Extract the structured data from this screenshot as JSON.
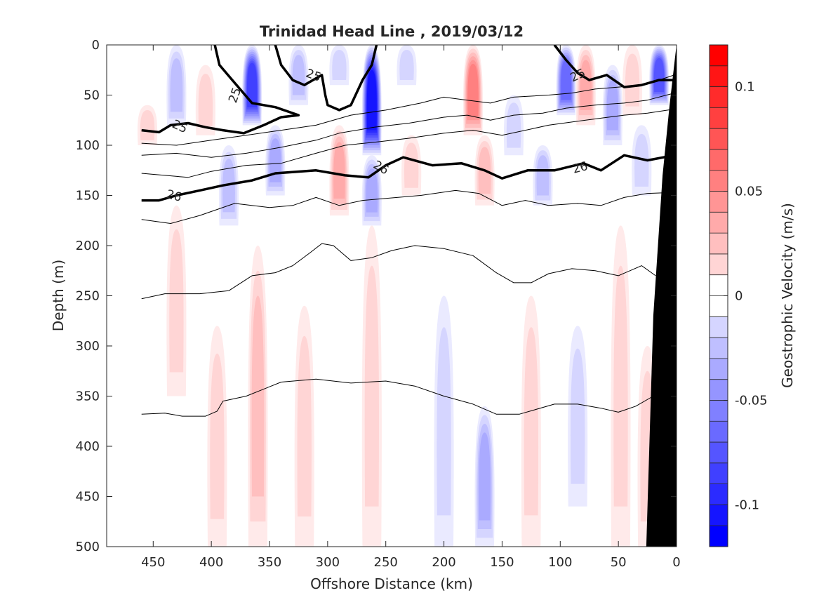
{
  "chart_data": {
    "type": "heatmap",
    "title": "Trinidad Head Line , 2019/03/12",
    "xlabel": "Offshore Distance (km)",
    "ylabel": "Depth (m)",
    "xlim": [
      490,
      0
    ],
    "ylim": [
      500,
      0
    ],
    "x_ticks": [
      "450",
      "400",
      "350",
      "300",
      "250",
      "200",
      "150",
      "100",
      "50",
      "0"
    ],
    "y_ticks": [
      "0",
      "50",
      "100",
      "150",
      "200",
      "250",
      "300",
      "350",
      "400",
      "450",
      "500"
    ],
    "colorbar": {
      "label": "Geostrophic Velocity (m/s)",
      "range": [
        -0.12,
        0.12
      ],
      "step": 0.01,
      "ticks": [
        "0.1",
        "0.05",
        "0",
        "-0.05",
        "-0.1"
      ],
      "positive_color": "#ff0000",
      "negative_color": "#0000ff",
      "zero_color": "#ffffff"
    },
    "velocity_bands": [
      {
        "x": 455,
        "top": 60,
        "bottom": 100,
        "v": 0.015
      },
      {
        "x": 430,
        "top": 0,
        "bottom": 80,
        "v": -0.025
      },
      {
        "x": 430,
        "top": 160,
        "bottom": 350,
        "v": 0.018
      },
      {
        "x": 405,
        "top": 20,
        "bottom": 90,
        "v": 0.02
      },
      {
        "x": 395,
        "top": 280,
        "bottom": 500,
        "v": 0.02
      },
      {
        "x": 385,
        "top": 100,
        "bottom": 180,
        "v": -0.03
      },
      {
        "x": 365,
        "top": 0,
        "bottom": 80,
        "v": -0.085
      },
      {
        "x": 360,
        "top": 200,
        "bottom": 500,
        "v": 0.025
      },
      {
        "x": 345,
        "top": 80,
        "bottom": 150,
        "v": -0.035
      },
      {
        "x": 325,
        "top": 0,
        "bottom": 60,
        "v": -0.03
      },
      {
        "x": 320,
        "top": 260,
        "bottom": 500,
        "v": 0.02
      },
      {
        "x": 290,
        "top": 80,
        "bottom": 170,
        "v": 0.035
      },
      {
        "x": 290,
        "top": 0,
        "bottom": 40,
        "v": -0.02
      },
      {
        "x": 262,
        "top": 0,
        "bottom": 110,
        "v": -0.105
      },
      {
        "x": 262,
        "top": 110,
        "bottom": 180,
        "v": -0.04
      },
      {
        "x": 262,
        "top": 180,
        "bottom": 500,
        "v": 0.02
      },
      {
        "x": 232,
        "top": 0,
        "bottom": 40,
        "v": -0.015
      },
      {
        "x": 228,
        "top": 90,
        "bottom": 150,
        "v": 0.015
      },
      {
        "x": 200,
        "top": 250,
        "bottom": 500,
        "v": -0.02
      },
      {
        "x": 175,
        "top": 0,
        "bottom": 90,
        "v": 0.06
      },
      {
        "x": 165,
        "top": 90,
        "bottom": 160,
        "v": 0.025
      },
      {
        "x": 165,
        "top": 360,
        "bottom": 500,
        "v": -0.035
      },
      {
        "x": 140,
        "top": 50,
        "bottom": 110,
        "v": -0.02
      },
      {
        "x": 125,
        "top": 250,
        "bottom": 500,
        "v": 0.018
      },
      {
        "x": 115,
        "top": 100,
        "bottom": 160,
        "v": -0.025
      },
      {
        "x": 95,
        "top": 0,
        "bottom": 70,
        "v": -0.07
      },
      {
        "x": 85,
        "top": 280,
        "bottom": 460,
        "v": -0.02
      },
      {
        "x": 78,
        "top": 0,
        "bottom": 80,
        "v": 0.04
      },
      {
        "x": 55,
        "top": 20,
        "bottom": 100,
        "v": -0.035
      },
      {
        "x": 48,
        "top": 180,
        "bottom": 500,
        "v": 0.02
      },
      {
        "x": 38,
        "top": 0,
        "bottom": 70,
        "v": 0.02
      },
      {
        "x": 30,
        "top": 80,
        "bottom": 150,
        "v": -0.02
      },
      {
        "x": 25,
        "top": 300,
        "bottom": 500,
        "v": 0.02
      },
      {
        "x": 15,
        "top": 0,
        "bottom": 60,
        "v": -0.075
      }
    ],
    "contour_lines": [
      {
        "level": "25",
        "bold": true,
        "points": [
          [
            460,
            85
          ],
          [
            445,
            87
          ],
          [
            435,
            80
          ],
          [
            420,
            78
          ],
          [
            405,
            82
          ],
          [
            390,
            85
          ],
          [
            372,
            88
          ],
          [
            355,
            80
          ],
          [
            340,
            72
          ],
          [
            325,
            70
          ],
          [
            345,
            62
          ],
          [
            365,
            58
          ],
          [
            382,
            35
          ],
          [
            393,
            20
          ],
          [
            397,
            0
          ]
        ]
      },
      {
        "level": "25",
        "bold": true,
        "points": [
          [
            345,
            0
          ],
          [
            340,
            20
          ],
          [
            330,
            35
          ],
          [
            320,
            40
          ],
          [
            305,
            30
          ],
          [
            302,
            50
          ],
          [
            300,
            60
          ],
          [
            290,
            65
          ],
          [
            280,
            60
          ],
          [
            270,
            35
          ],
          [
            262,
            20
          ],
          [
            258,
            0
          ]
        ]
      },
      {
        "level": "25",
        "bold": true,
        "points": [
          [
            105,
            0
          ],
          [
            95,
            15
          ],
          [
            85,
            28
          ],
          [
            75,
            35
          ],
          [
            60,
            30
          ],
          [
            45,
            42
          ],
          [
            30,
            40
          ],
          [
            15,
            35
          ],
          [
            2,
            35
          ]
        ]
      },
      {
        "level": "26",
        "bold": true,
        "points": [
          [
            460,
            155
          ],
          [
            445,
            155
          ],
          [
            430,
            150
          ],
          [
            410,
            145
          ],
          [
            390,
            140
          ],
          [
            365,
            135
          ],
          [
            345,
            128
          ],
          [
            310,
            125
          ],
          [
            285,
            130
          ],
          [
            265,
            132
          ],
          [
            250,
            120
          ],
          [
            235,
            112
          ],
          [
            210,
            120
          ],
          [
            185,
            118
          ],
          [
            165,
            125
          ],
          [
            150,
            133
          ],
          [
            128,
            125
          ],
          [
            105,
            125
          ],
          [
            80,
            118
          ],
          [
            65,
            125
          ],
          [
            45,
            110
          ],
          [
            25,
            115
          ],
          [
            2,
            110
          ]
        ]
      },
      {
        "level": "",
        "bold": false,
        "points": [
          [
            460,
            98
          ],
          [
            430,
            100
          ],
          [
            400,
            95
          ],
          [
            370,
            90
          ],
          [
            340,
            85
          ],
          [
            310,
            80
          ],
          [
            280,
            70
          ],
          [
            250,
            65
          ],
          [
            220,
            58
          ],
          [
            200,
            52
          ],
          [
            180,
            55
          ],
          [
            160,
            58
          ],
          [
            140,
            52
          ],
          [
            110,
            50
          ],
          [
            90,
            48
          ],
          [
            70,
            44
          ],
          [
            50,
            42
          ],
          [
            30,
            40
          ],
          [
            15,
            35
          ],
          [
            2,
            30
          ]
        ]
      },
      {
        "level": "",
        "bold": false,
        "points": [
          [
            460,
            110
          ],
          [
            430,
            108
          ],
          [
            400,
            112
          ],
          [
            370,
            108
          ],
          [
            340,
            102
          ],
          [
            310,
            95
          ],
          [
            290,
            88
          ],
          [
            260,
            82
          ],
          [
            230,
            78
          ],
          [
            200,
            72
          ],
          [
            180,
            70
          ],
          [
            160,
            75
          ],
          [
            140,
            70
          ],
          [
            115,
            68
          ],
          [
            95,
            63
          ],
          [
            70,
            60
          ],
          [
            45,
            58
          ],
          [
            25,
            55
          ],
          [
            2,
            48
          ]
        ]
      },
      {
        "level": "",
        "bold": false,
        "points": [
          [
            460,
            128
          ],
          [
            440,
            130
          ],
          [
            420,
            132
          ],
          [
            400,
            126
          ],
          [
            370,
            120
          ],
          [
            340,
            118
          ],
          [
            310,
            108
          ],
          [
            285,
            100
          ],
          [
            260,
            97
          ],
          [
            230,
            93
          ],
          [
            200,
            88
          ],
          [
            175,
            85
          ],
          [
            150,
            90
          ],
          [
            130,
            85
          ],
          [
            110,
            80
          ],
          [
            85,
            76
          ],
          [
            65,
            73
          ],
          [
            45,
            70
          ],
          [
            25,
            68
          ],
          [
            2,
            64
          ]
        ]
      },
      {
        "level": "",
        "bold": false,
        "points": [
          [
            460,
            174
          ],
          [
            435,
            178
          ],
          [
            410,
            170
          ],
          [
            380,
            158
          ],
          [
            350,
            162
          ],
          [
            330,
            160
          ],
          [
            310,
            152
          ],
          [
            290,
            160
          ],
          [
            270,
            155
          ],
          [
            250,
            153
          ],
          [
            220,
            150
          ],
          [
            190,
            145
          ],
          [
            170,
            148
          ],
          [
            150,
            160
          ],
          [
            130,
            155
          ],
          [
            110,
            160
          ],
          [
            85,
            158
          ],
          [
            65,
            160
          ],
          [
            45,
            152
          ],
          [
            25,
            148
          ],
          [
            2,
            147
          ]
        ]
      },
      {
        "level": "",
        "bold": false,
        "points": [
          [
            460,
            253
          ],
          [
            440,
            248
          ],
          [
            410,
            248
          ],
          [
            385,
            245
          ],
          [
            365,
            230
          ],
          [
            345,
            227
          ],
          [
            330,
            220
          ],
          [
            315,
            207
          ],
          [
            305,
            198
          ],
          [
            295,
            200
          ],
          [
            280,
            215
          ],
          [
            262,
            212
          ],
          [
            245,
            205
          ],
          [
            225,
            200
          ],
          [
            200,
            203
          ],
          [
            175,
            210
          ],
          [
            155,
            227
          ],
          [
            140,
            237
          ],
          [
            125,
            237
          ],
          [
            110,
            228
          ],
          [
            90,
            223
          ],
          [
            70,
            225
          ],
          [
            50,
            230
          ],
          [
            30,
            220
          ],
          [
            18,
            230
          ]
        ]
      },
      {
        "level": "",
        "bold": false,
        "points": [
          [
            460,
            368
          ],
          [
            440,
            367
          ],
          [
            425,
            370
          ],
          [
            405,
            370
          ],
          [
            395,
            365
          ],
          [
            390,
            355
          ],
          [
            370,
            350
          ],
          [
            340,
            336
          ],
          [
            310,
            333
          ],
          [
            280,
            337
          ],
          [
            250,
            335
          ],
          [
            225,
            340
          ],
          [
            200,
            350
          ],
          [
            175,
            358
          ],
          [
            155,
            368
          ],
          [
            135,
            368
          ],
          [
            105,
            358
          ],
          [
            85,
            358
          ],
          [
            65,
            362
          ],
          [
            50,
            366
          ],
          [
            35,
            360
          ],
          [
            20,
            350
          ]
        ]
      }
    ],
    "contour_labels": [
      {
        "text": "25",
        "x": 380,
        "y": 50,
        "angle": 70
      },
      {
        "text": "25",
        "x": 312,
        "y": 30,
        "angle": -20
      },
      {
        "text": "25",
        "x": 427,
        "y": 81,
        "angle": -25
      },
      {
        "text": "25",
        "x": 85,
        "y": 30,
        "angle": 25
      },
      {
        "text": "26",
        "x": 432,
        "y": 150,
        "angle": -15
      },
      {
        "text": "26",
        "x": 254,
        "y": 122,
        "angle": -30
      },
      {
        "text": "26",
        "x": 83,
        "y": 122,
        "angle": 15
      }
    ],
    "bathymetry": {
      "color": "#000000",
      "points": [
        [
          0,
          0
        ],
        [
          0,
          500
        ],
        [
          26,
          500
        ],
        [
          20,
          270
        ],
        [
          12,
          130
        ],
        [
          6,
          60
        ],
        [
          1,
          10
        ]
      ]
    }
  }
}
